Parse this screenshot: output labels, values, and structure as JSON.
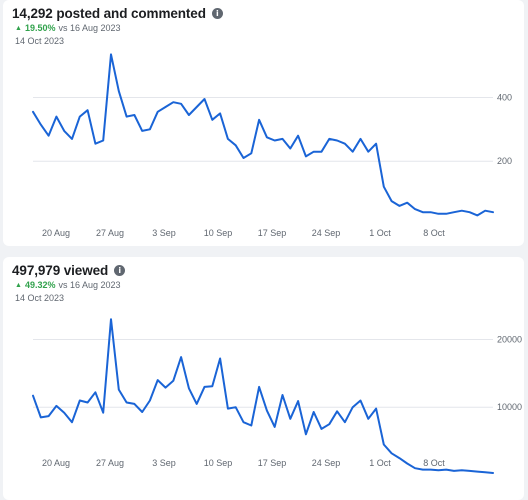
{
  "colors": {
    "line": "#1a64d6",
    "up": "#31a24c",
    "background": "#f0f2f5",
    "card": "#ffffff"
  },
  "panels": [
    {
      "title": "14,292 posted and commented",
      "info_icon": "info-icon",
      "change_icon": "up-arrow-icon",
      "change_pct": "19.50%",
      "change_text": "vs 16 Aug 2023",
      "date": "14 Oct 2023"
    },
    {
      "title": "497,979 viewed",
      "info_icon": "info-icon",
      "change_icon": "up-arrow-icon",
      "change_pct": "49.32%",
      "change_text": "vs 16 Aug 2023",
      "date": "14 Oct 2023"
    }
  ],
  "chart_data": [
    {
      "type": "line",
      "x_tick_labels": [
        "20 Aug",
        "27 Aug",
        "3 Sep",
        "10 Sep",
        "17 Sep",
        "24 Sep",
        "1 Oct",
        "8 Oct"
      ],
      "y_tick_labels": [
        "200",
        "400"
      ],
      "ylim": [
        0,
        530
      ],
      "grid": true,
      "series": [
        {
          "values": [
            355,
            315,
            280,
            340,
            295,
            270,
            340,
            360,
            255,
            265,
            535,
            420,
            340,
            345,
            295,
            300,
            355,
            370,
            385,
            380,
            345,
            370,
            395,
            330,
            350,
            270,
            250,
            210,
            225,
            330,
            275,
            265,
            270,
            240,
            280,
            215,
            230,
            230,
            270,
            265,
            255,
            230,
            270,
            230,
            255,
            120,
            75,
            60,
            70,
            50,
            40,
            40,
            35,
            35,
            40,
            45,
            40,
            30,
            45,
            40
          ]
        }
      ]
    },
    {
      "type": "line",
      "x_tick_labels": [
        "20 Aug",
        "27 Aug",
        "3 Sep",
        "10 Sep",
        "17 Sep",
        "24 Sep",
        "1 Oct",
        "8 Oct"
      ],
      "y_tick_labels": [
        "10000",
        "20000"
      ],
      "ylim": [
        0,
        24500
      ],
      "grid": true,
      "series": [
        {
          "values": [
            11700,
            8500,
            8700,
            10200,
            9200,
            7800,
            11000,
            10700,
            12200,
            9200,
            23000,
            12600,
            10700,
            10500,
            9300,
            11000,
            14000,
            12900,
            13900,
            17400,
            12800,
            10500,
            13000,
            13100,
            17200,
            9800,
            10000,
            7800,
            7300,
            13000,
            9500,
            7100,
            11800,
            8300,
            10900,
            6000,
            9300,
            6800,
            7500,
            9400,
            7800,
            10000,
            11000,
            8300,
            9800,
            4500,
            3200,
            2500,
            1700,
            1000,
            800,
            800,
            700,
            800,
            600,
            700,
            600,
            500,
            400,
            300
          ]
        }
      ]
    }
  ]
}
